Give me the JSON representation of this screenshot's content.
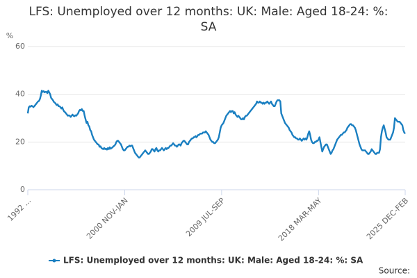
{
  "chart_data": {
    "type": "line",
    "title": "LFS: Unemployed over 12 months: UK: Male: Aged 18-24: %: SA",
    "y_label": "%",
    "source": "Source:",
    "categories": [
      "1992 ...",
      null,
      null,
      null,
      null,
      null,
      null,
      null,
      null,
      null,
      null,
      null,
      null,
      null,
      null,
      null,
      null,
      null,
      null,
      null,
      null,
      null,
      null,
      null,
      null,
      null,
      null,
      null,
      null,
      null,
      null,
      null,
      null,
      null,
      null,
      null,
      null,
      null,
      null,
      null,
      null,
      null,
      null,
      null,
      null,
      null,
      null,
      null,
      null,
      null,
      null,
      null,
      null,
      null,
      null,
      null,
      null,
      null,
      null,
      null,
      null,
      null,
      null,
      null,
      null,
      null,
      null,
      null,
      null,
      null,
      null,
      null,
      null,
      null,
      null,
      null,
      null,
      null,
      null,
      null,
      null,
      null,
      null,
      null,
      null,
      null,
      null,
      null,
      null,
      null,
      null,
      null,
      null,
      null,
      null,
      null,
      null,
      null,
      null,
      null,
      null,
      null,
      null,
      null,
      "2000 NOV-JAN",
      null,
      null,
      null,
      null,
      null,
      null,
      null,
      null,
      null,
      null,
      null,
      null,
      null,
      null,
      null,
      null,
      null,
      null,
      null,
      null,
      null,
      null,
      null,
      null,
      null,
      null,
      null,
      null,
      null,
      null,
      null,
      null,
      null,
      null,
      null,
      null,
      null,
      null,
      null,
      null,
      null,
      null,
      null,
      null,
      null,
      null,
      null,
      null,
      null,
      null,
      null,
      null,
      null,
      null,
      null,
      null,
      null,
      null,
      null,
      null,
      null,
      null,
      null,
      null,
      null,
      null,
      null,
      null,
      null,
      null,
      null,
      null,
      null,
      null,
      null,
      null,
      null,
      null,
      null,
      null,
      null,
      null,
      null,
      null,
      null,
      null,
      null,
      null,
      null,
      null,
      null,
      null,
      null,
      null,
      null,
      null,
      null,
      null,
      null,
      null,
      null,
      null,
      null,
      "2009 JUL-SEP",
      null,
      null,
      null,
      null,
      null,
      null,
      null,
      null,
      null,
      null,
      null,
      null,
      null,
      null,
      null,
      null,
      null,
      null,
      null,
      null,
      null,
      null,
      null,
      null,
      null,
      null,
      null,
      null,
      null,
      null,
      null,
      null,
      null,
      null,
      null,
      null,
      null,
      null,
      null,
      null,
      null,
      null,
      null,
      null,
      null,
      null,
      null,
      null,
      null,
      null,
      null,
      null,
      null,
      null,
      null,
      null,
      null,
      null,
      null,
      null,
      null,
      null,
      null,
      null,
      null,
      null,
      null,
      null,
      null,
      null,
      null,
      null,
      null,
      null,
      null,
      null,
      null,
      null,
      null,
      null,
      null,
      null,
      null,
      null,
      null,
      null,
      null,
      null,
      null,
      null,
      null,
      null,
      null,
      null,
      null,
      null,
      null,
      null,
      null,
      null,
      null,
      null,
      null,
      "2018 MAR-MAY",
      null,
      null,
      null,
      null,
      null,
      null,
      null,
      null,
      null,
      null,
      null,
      null,
      null,
      null,
      null,
      null,
      null,
      null,
      null,
      null,
      null,
      null,
      null,
      null,
      null,
      null,
      null,
      null,
      null,
      null,
      null,
      null,
      null,
      null,
      null,
      null,
      null,
      null,
      null,
      null,
      null,
      null,
      null,
      null,
      null,
      null,
      null,
      null,
      null,
      null,
      null,
      null,
      null,
      null,
      null,
      null,
      null,
      null,
      null,
      null,
      null,
      null,
      null,
      null,
      null,
      null,
      null,
      null,
      null,
      null,
      null,
      null,
      null,
      null,
      null,
      null,
      null,
      null,
      null,
      null,
      null,
      null,
      null,
      null,
      null,
      null,
      null,
      null,
      null,
      null,
      null,
      null,
      "2025 DEC-FEB"
    ],
    "series": [
      {
        "name": "LFS: Unemployed over 12 months: UK: Male: Aged 18-24: %: SA",
        "color": "#1a7fc1",
        "values": [
          32,
          34.5,
          35,
          34.8,
          35.2,
          35,
          34.6,
          35,
          35.5,
          36,
          36.5,
          37,
          37.2,
          38,
          39.5,
          41.5,
          41,
          41.3,
          40.8,
          41,
          41,
          40.5,
          41.5,
          40.8,
          40,
          38.5,
          38,
          37.5,
          36.8,
          36.5,
          36,
          35.5,
          35.8,
          35,
          35,
          34.6,
          34,
          34.5,
          33.5,
          32.8,
          32.5,
          32,
          31.5,
          31,
          31.2,
          31,
          30.5,
          31,
          31.5,
          31,
          30.8,
          31.2,
          31,
          31.5,
          32,
          33,
          33.5,
          33.2,
          33.8,
          33,
          33,
          31,
          29.5,
          28,
          28.5,
          27,
          26.5,
          25,
          24.5,
          23,
          22,
          21,
          20.5,
          20,
          19.5,
          19,
          19,
          18,
          18.2,
          17.5,
          17.2,
          17,
          17.5,
          17,
          17.2,
          16.8,
          17.5,
          17,
          17.8,
          17.2,
          17.5,
          17.8,
          18.2,
          18.5,
          19,
          20,
          20.5,
          20.5,
          20,
          19.5,
          19,
          18,
          17,
          16.5,
          16.5,
          17,
          17.5,
          18,
          18,
          18.5,
          18.2,
          18.5,
          18.5,
          17.5,
          16.5,
          15.5,
          15,
          14.5,
          14,
          13.5,
          13.5,
          14,
          14.5,
          15,
          15.5,
          16,
          16.5,
          16,
          15.5,
          15,
          15,
          15.5,
          16,
          17,
          17,
          16.5,
          16,
          17,
          17.5,
          16.5,
          16,
          16.5,
          16.5,
          17,
          17.5,
          17,
          16.5,
          17,
          17.5,
          17,
          17.5,
          17.5,
          18,
          18.5,
          18.5,
          19,
          19.5,
          19,
          18.5,
          18.5,
          18,
          18.5,
          19,
          19,
          18.5,
          19.5,
          20,
          20.5,
          20.5,
          20,
          19.5,
          19,
          19,
          20,
          20.5,
          21,
          21.5,
          21.5,
          22,
          22,
          22.5,
          22,
          22.5,
          23,
          23,
          23.5,
          23.5,
          23.5,
          24,
          24,
          24,
          24.5,
          24,
          23.5,
          23,
          22,
          21,
          20.5,
          20,
          20,
          19.5,
          19.5,
          20,
          20.5,
          21,
          22,
          24,
          26,
          27,
          27.5,
          28,
          29,
          30,
          31,
          31.5,
          32,
          32.5,
          33,
          32.5,
          33,
          33,
          32,
          32.5,
          31.5,
          31,
          30.5,
          31,
          30.5,
          30,
          29.5,
          29.5,
          30,
          29.5,
          30.5,
          31,
          31,
          31.5,
          32,
          32.5,
          33,
          33.5,
          34,
          34.5,
          35,
          35.5,
          36,
          37,
          36.5,
          36.5,
          37,
          36.5,
          36.5,
          36,
          36.5,
          36,
          36.5,
          36.5,
          37,
          36.5,
          36,
          36.5,
          37,
          36,
          35.5,
          35,
          35,
          36,
          37,
          37.5,
          37.5,
          37.5,
          37,
          32,
          31,
          30,
          29,
          28,
          27.5,
          27,
          26.5,
          26,
          25,
          24.5,
          24,
          23,
          22.5,
          22,
          22,
          21.5,
          21.5,
          21,
          21,
          21.5,
          21,
          20.5,
          21,
          21.5,
          21,
          21.5,
          21,
          22,
          23.5,
          24.5,
          23,
          21,
          20,
          19.5,
          19.5,
          20,
          20,
          20.5,
          20.5,
          21,
          22,
          20,
          18,
          16,
          17,
          18,
          18.5,
          19,
          19,
          18,
          17,
          16,
          15,
          15.5,
          16.5,
          17,
          18,
          19,
          20,
          21,
          21.5,
          22,
          22.5,
          23,
          23,
          23.5,
          24,
          24,
          24.5,
          25,
          26,
          26.5,
          27,
          27.5,
          27.5,
          27,
          27,
          26.5,
          26,
          25,
          23.5,
          22,
          20.5,
          19,
          18,
          17,
          16.5,
          16.5,
          16.5,
          16.5,
          16,
          15.5,
          15,
          15,
          15.5,
          16,
          17,
          16.5,
          16,
          15.5,
          15,
          15,
          15.5,
          15.5,
          15.5,
          17,
          22,
          24.5,
          26,
          27,
          25.5,
          24,
          22,
          21.5,
          21,
          21,
          21,
          22,
          23,
          24,
          26,
          30,
          29.5,
          29,
          28.5,
          28.5,
          28.5,
          28,
          27.5,
          27,
          25,
          24,
          23.5
        ]
      }
    ],
    "ylim": [
      0,
      60
    ],
    "yticks": [
      0,
      20,
      40,
      60
    ],
    "grid": true
  }
}
